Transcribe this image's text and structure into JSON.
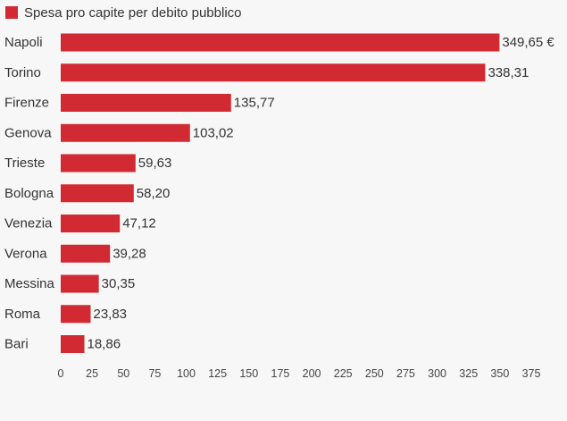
{
  "chart_data": {
    "type": "bar",
    "orientation": "horizontal",
    "categories": [
      "Napoli",
      "Torino",
      "Firenze",
      "Genova",
      "Trieste",
      "Bologna",
      "Venezia",
      "Verona",
      "Messina",
      "Roma",
      "Bari"
    ],
    "series": [
      {
        "name": "Spesa pro capite per debito pubblico",
        "color": "#d12a33",
        "values": [
          349.65,
          338.31,
          135.77,
          103.02,
          59.63,
          58.2,
          47.12,
          39.28,
          30.35,
          23.83,
          18.86
        ],
        "value_labels": [
          "349,65 €",
          "338,31",
          "135,77",
          "103,02",
          "59,63",
          "58,20",
          "47,12",
          "39,28",
          "30,35",
          "23,83",
          "18,86"
        ]
      }
    ],
    "title": "",
    "xlabel": "",
    "ylabel": "",
    "xlim": [
      0,
      375
    ],
    "ticks": [
      0,
      25,
      50,
      75,
      100,
      125,
      150,
      175,
      200,
      225,
      250,
      275,
      300,
      325,
      350,
      375
    ],
    "grid": false,
    "legend_position": "top-left"
  }
}
